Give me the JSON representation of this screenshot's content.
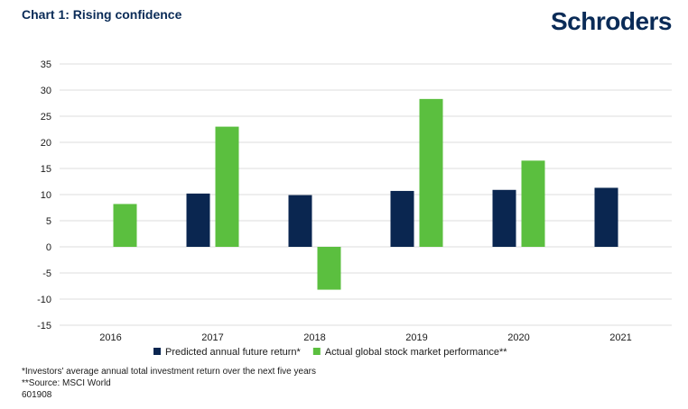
{
  "header": {
    "title": "Chart 1: Rising confidence",
    "brand": "Schroders"
  },
  "notes": [
    "*Investors' average annual total investment return over the next five years",
    "**Source: MSCI World",
    "601908"
  ],
  "chart_data": {
    "type": "bar",
    "categories": [
      "2016",
      "2017",
      "2018",
      "2019",
      "2020",
      "2021"
    ],
    "series": [
      {
        "name": "Predicted annual future return*",
        "color": "#0a2650",
        "values": [
          null,
          10.2,
          9.9,
          10.7,
          10.9,
          11.3
        ]
      },
      {
        "name": "Actual global stock market performance**",
        "color": "#5bbf3f",
        "values": [
          8.2,
          23.0,
          -8.2,
          28.3,
          16.5,
          null
        ]
      }
    ],
    "y_ticks": [
      "35",
      "30",
      "25",
      "20",
      "15",
      "10",
      "5",
      "0",
      "-5",
      "-10",
      "-15"
    ],
    "ylim": [
      -15,
      35
    ],
    "grid": true,
    "legend": "bottom"
  }
}
